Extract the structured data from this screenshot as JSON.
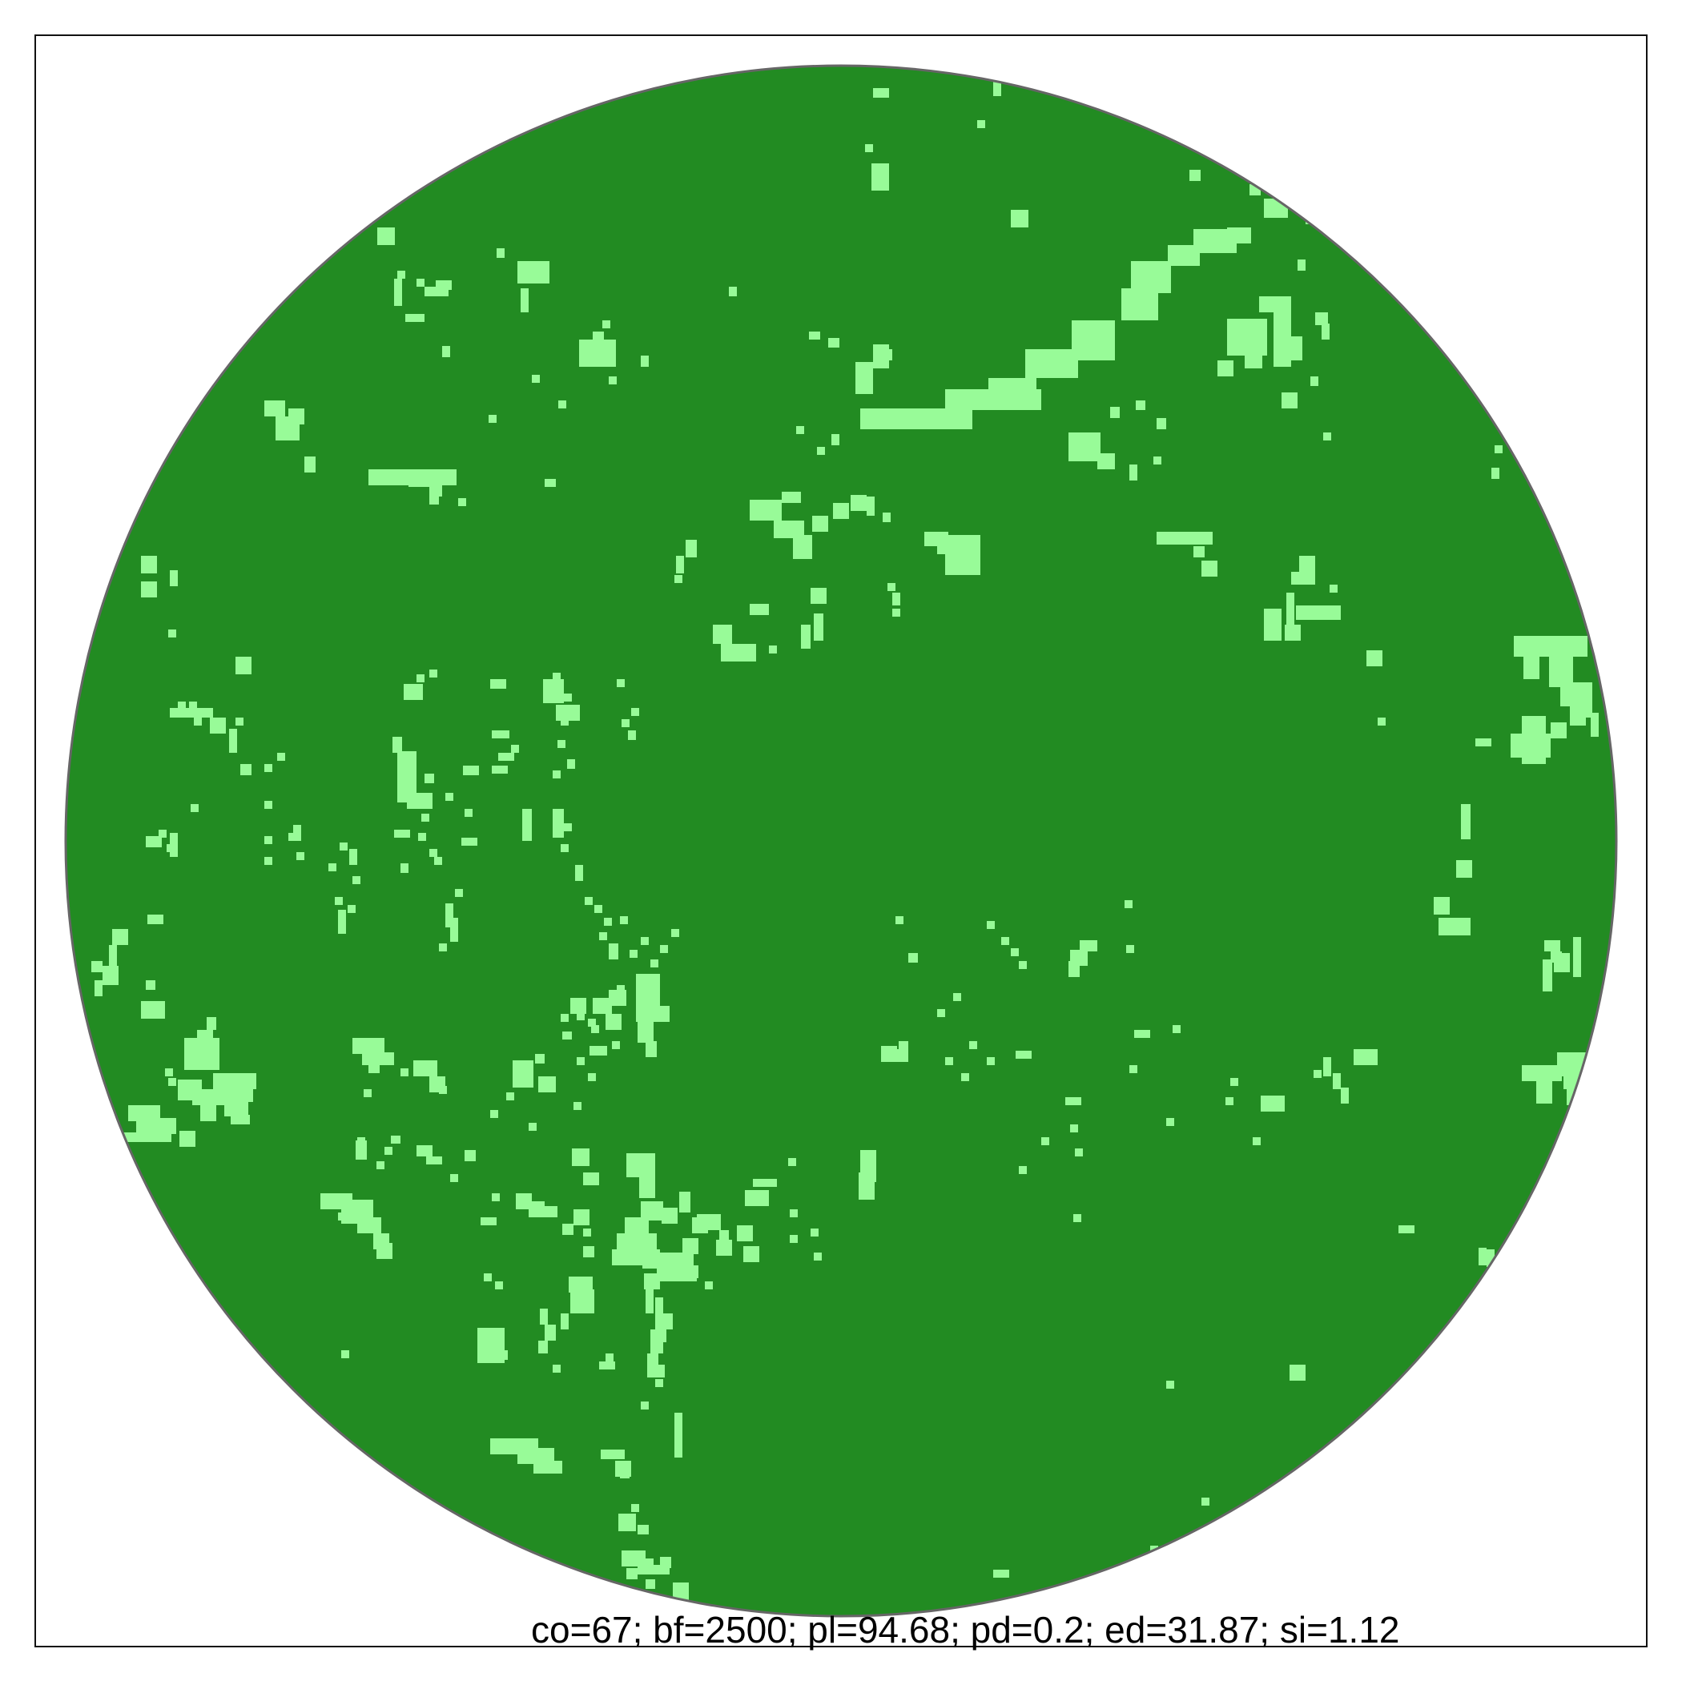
{
  "map": {
    "colors": {
      "forest": "#228B22",
      "clearing": "#98FB98",
      "outline": "#666666",
      "frame": "#111111",
      "background": "#ffffff"
    },
    "stats_caption": "co=67; bf=2500; pl=94.68; pd=0.2; ed=31.87; si=1.12"
  }
}
